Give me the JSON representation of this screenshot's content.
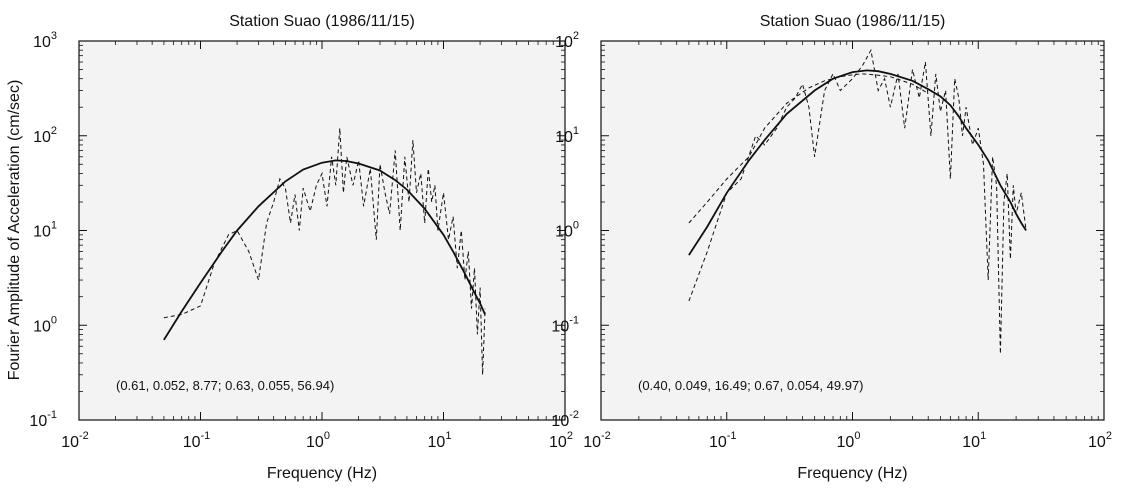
{
  "figure": {
    "ylabel": "Fourier Amplitude of Acceleration (cm/sec)",
    "panel_bg": "#f3f3f3",
    "ink": "#111111"
  },
  "chart_data": [
    {
      "type": "line",
      "title": "Station Suao (1986/11/15)",
      "xlabel": "Frequency (Hz)",
      "ylabel": "Fourier Amplitude of Acceleration (cm/sec)",
      "xscale": "log",
      "yscale": "log",
      "xlim": [
        0.01,
        100
      ],
      "ylim": [
        0.1,
        1000
      ],
      "x_ticks": [
        0.01,
        0.1,
        1,
        10,
        100
      ],
      "x_tick_labels": [
        [
          "10",
          "-2"
        ],
        [
          "10",
          "-1"
        ],
        [
          "10",
          "0"
        ],
        [
          "10",
          "1"
        ],
        [
          "10",
          "2"
        ]
      ],
      "y_ticks": [
        0.1,
        1,
        10,
        100,
        1000
      ],
      "y_tick_labels": [
        [
          "10",
          "-1"
        ],
        [
          "10",
          "0"
        ],
        [
          "10",
          "1"
        ],
        [
          "10",
          "2"
        ],
        [
          "10",
          "3"
        ]
      ],
      "annotation": "(0.61, 0.052, 8.77; 0.63, 0.055, 56.94)",
      "series": [
        {
          "style": "solid",
          "x": [
            0.05,
            0.07,
            0.1,
            0.15,
            0.2,
            0.3,
            0.5,
            0.7,
            1.0,
            1.3,
            1.6,
            2,
            3,
            4,
            5,
            7,
            10,
            12,
            15,
            18,
            20,
            22
          ],
          "y": [
            0.7,
            1.4,
            2.8,
            6,
            10,
            18,
            33,
            44,
            52,
            55,
            54,
            51,
            43,
            34,
            27,
            17,
            9,
            6,
            3.5,
            2.2,
            1.7,
            1.3
          ]
        },
        {
          "style": "dashed",
          "x": [
            0.05,
            0.07,
            0.1,
            0.13,
            0.17,
            0.2,
            0.25,
            0.3,
            0.35,
            0.4,
            0.45,
            0.5,
            0.55,
            0.6,
            0.65,
            0.7,
            0.8,
            0.9,
            1.0,
            1.1,
            1.2,
            1.3,
            1.4,
            1.5,
            1.6,
            1.8,
            2.0,
            2.2,
            2.5,
            2.8,
            3.0,
            3.3,
            3.6,
            4.0,
            4.4,
            4.8,
            5.2,
            5.6,
            6.0,
            6.5,
            7.0,
            7.5,
            8,
            8.5,
            9,
            10,
            11,
            12,
            13,
            14,
            15,
            16,
            17,
            18,
            19,
            20,
            21,
            22
          ],
          "y": [
            1.2,
            1.3,
            1.6,
            4.5,
            9,
            10,
            6,
            3,
            12,
            20,
            35,
            28,
            12,
            24,
            10,
            28,
            16,
            30,
            40,
            18,
            60,
            30,
            120,
            25,
            60,
            30,
            55,
            18,
            45,
            8,
            50,
            25,
            15,
            70,
            10,
            60,
            20,
            90,
            25,
            40,
            12,
            45,
            20,
            30,
            10,
            25,
            8,
            14,
            4,
            10,
            3,
            6,
            1.5,
            4,
            0.8,
            2.5,
            0.3,
            1.5
          ]
        }
      ]
    },
    {
      "type": "line",
      "title": "Station Suao (1986/11/15)",
      "xlabel": "Frequency (Hz)",
      "ylabel": "",
      "xscale": "log",
      "yscale": "log",
      "xlim": [
        0.01,
        100
      ],
      "ylim": [
        0.01,
        100
      ],
      "x_ticks": [
        0.01,
        0.1,
        1,
        10,
        100
      ],
      "x_tick_labels": [
        [
          "10",
          "-2"
        ],
        [
          "10",
          "-1"
        ],
        [
          "10",
          "0"
        ],
        [
          "10",
          "1"
        ],
        [
          "10",
          "2"
        ]
      ],
      "y_ticks": [
        0.01,
        0.1,
        1,
        10,
        100
      ],
      "y_tick_labels": [
        [
          "10",
          "-2"
        ],
        [
          "10",
          "-1"
        ],
        [
          "10",
          "0"
        ],
        [
          "10",
          "1"
        ],
        [
          "10",
          "2"
        ]
      ],
      "annotation": "(0.40, 0.049, 16.49; 0.67, 0.054, 49.97)",
      "series": [
        {
          "style": "solid",
          "x": [
            0.05,
            0.07,
            0.1,
            0.15,
            0.2,
            0.3,
            0.5,
            0.7,
            1.0,
            1.3,
            1.6,
            2,
            3,
            4,
            5,
            6,
            7,
            8,
            10,
            12,
            15,
            18,
            20,
            22,
            24
          ],
          "y": [
            0.55,
            1.1,
            2.5,
            5.5,
            9,
            17,
            30,
            40,
            47,
            49,
            48,
            45,
            38,
            31,
            26,
            21,
            16,
            12,
            8,
            5.5,
            3,
            2,
            1.5,
            1.2,
            1.0
          ]
        },
        {
          "style": "dashed",
          "x": [
            0.05,
            0.07,
            0.1,
            0.13,
            0.17,
            0.2,
            0.25,
            0.3,
            0.35,
            0.4,
            0.45,
            0.5,
            0.6,
            0.7,
            0.8,
            1.0,
            1.2,
            1.4,
            1.6,
            1.8,
            2.0,
            2.3,
            2.6,
            3.0,
            3.4,
            3.8,
            4.2,
            4.6,
            5.0,
            5.5,
            6.0,
            6.5,
            7,
            7.5,
            8,
            9,
            10,
            11,
            12,
            13,
            14,
            15,
            16,
            17,
            18,
            19,
            20,
            22,
            24
          ],
          "y": [
            0.18,
            0.6,
            2.5,
            3.5,
            10,
            8,
            12,
            20,
            25,
            35,
            20,
            6,
            30,
            45,
            30,
            40,
            55,
            80,
            30,
            40,
            20,
            45,
            12,
            50,
            25,
            60,
            10,
            45,
            18,
            30,
            3.5,
            40,
            25,
            10,
            20,
            8,
            12,
            5,
            0.3,
            6,
            3,
            0.05,
            2,
            4,
            0.5,
            3,
            1.5,
            2.5,
            1.0
          ]
        },
        {
          "style": "dashed",
          "x": [
            0.05,
            0.07,
            0.1,
            0.15,
            0.2,
            0.3,
            0.45,
            0.6,
            0.8,
            1.0,
            1.2,
            1.5,
            2,
            3,
            4
          ],
          "y": [
            1.2,
            2.0,
            3.5,
            6,
            12,
            22,
            32,
            38,
            42,
            44,
            45,
            44,
            42,
            35,
            28
          ]
        }
      ]
    }
  ]
}
